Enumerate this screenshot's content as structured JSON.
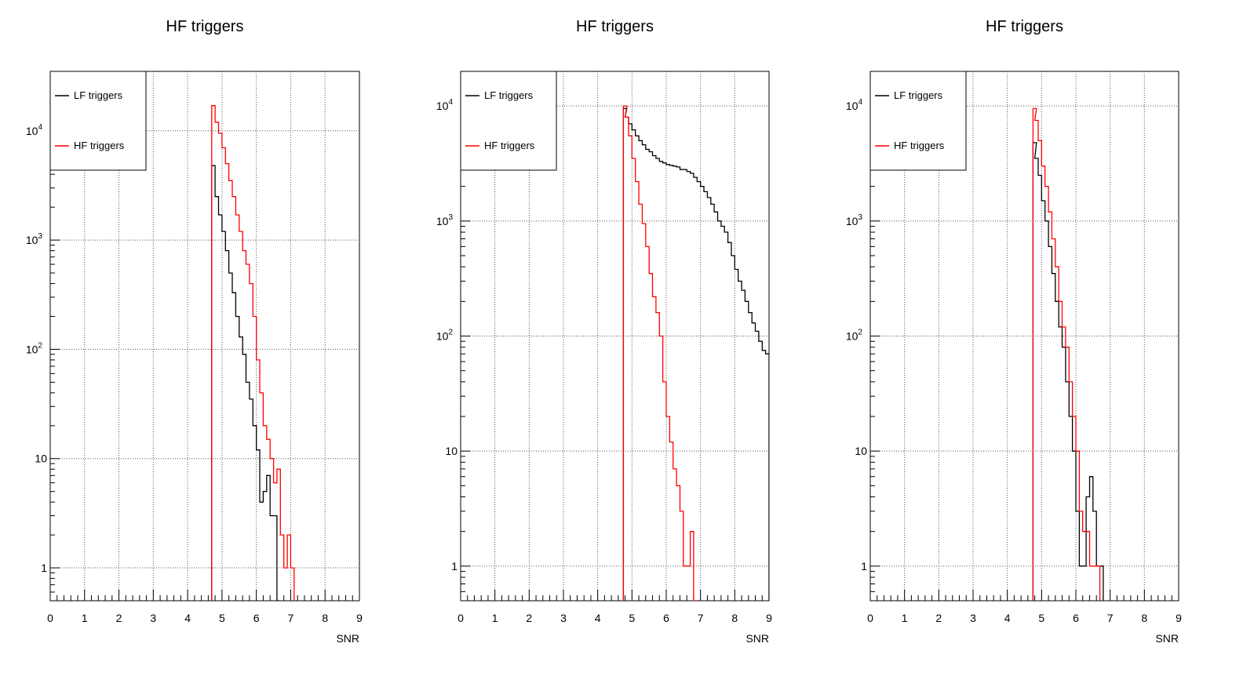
{
  "page": {
    "colors": {
      "lf": "#000000",
      "hf": "#ff0000",
      "grid": "#555555"
    }
  },
  "chart_data": [
    {
      "type": "line",
      "title": "HF triggers",
      "xlabel": "SNR",
      "ylabel": "",
      "xlim": [
        0,
        9
      ],
      "ylim": [
        0.5,
        35000
      ],
      "yscale": "log",
      "grid": true,
      "legend_position": "top-left",
      "x_ticks": [
        "0",
        "1",
        "2",
        "3",
        "4",
        "5",
        "6",
        "7",
        "8",
        "9"
      ],
      "y_ticks": [
        {
          "v": 1,
          "t": "1"
        },
        {
          "v": 10,
          "t": "10"
        },
        {
          "v": 100,
          "t": "10",
          "sup": "2"
        },
        {
          "v": 1000,
          "t": "10",
          "sup": "3"
        },
        {
          "v": 10000,
          "t": "10",
          "sup": "4"
        }
      ],
      "series": [
        {
          "name": "LF triggers",
          "color": "#000000",
          "x": [
            4.7,
            4.8,
            4.9,
            5.0,
            5.1,
            5.2,
            5.3,
            5.4,
            5.5,
            5.6,
            5.7,
            5.8,
            5.9,
            6.0,
            6.1,
            6.2,
            6.3,
            6.4,
            6.5,
            6.6
          ],
          "y": [
            4800,
            2500,
            1700,
            1200,
            800,
            500,
            330,
            200,
            130,
            90,
            50,
            35,
            20,
            12,
            4,
            5,
            7,
            3,
            3,
            0.5
          ]
        },
        {
          "name": "HF triggers",
          "color": "#ff0000",
          "x": [
            4.7,
            4.8,
            4.9,
            5.0,
            5.1,
            5.2,
            5.3,
            5.4,
            5.5,
            5.6,
            5.7,
            5.8,
            5.9,
            6.0,
            6.1,
            6.2,
            6.3,
            6.4,
            6.5,
            6.6,
            6.7,
            6.8,
            6.9,
            7.0
          ],
          "y": [
            17000,
            12000,
            9500,
            7000,
            5000,
            3500,
            2500,
            1700,
            1200,
            800,
            600,
            400,
            200,
            80,
            40,
            20,
            15,
            10,
            6,
            8,
            2,
            1,
            2,
            1
          ]
        }
      ]
    },
    {
      "type": "line",
      "title": "HF triggers",
      "xlabel": "SNR",
      "ylabel": "",
      "xlim": [
        0,
        9
      ],
      "ylim": [
        0.5,
        20000
      ],
      "yscale": "log",
      "grid": true,
      "legend_position": "top-left",
      "x_ticks": [
        "0",
        "1",
        "2",
        "3",
        "4",
        "5",
        "6",
        "7",
        "8",
        "9"
      ],
      "y_ticks": [
        {
          "v": 1,
          "t": "1"
        },
        {
          "v": 10,
          "t": "10"
        },
        {
          "v": 100,
          "t": "10",
          "sup": "2"
        },
        {
          "v": 1000,
          "t": "10",
          "sup": "3"
        },
        {
          "v": 10000,
          "t": "10",
          "sup": "4"
        }
      ],
      "series": [
        {
          "name": "LF triggers",
          "color": "#000000",
          "x": [
            4.75,
            4.8,
            4.9,
            5.0,
            5.1,
            5.2,
            5.3,
            5.4,
            5.5,
            5.6,
            5.7,
            5.8,
            5.9,
            6.0,
            6.1,
            6.2,
            6.3,
            6.4,
            6.5,
            6.6,
            6.7,
            6.8,
            6.9,
            7.0,
            7.1,
            7.2,
            7.3,
            7.4,
            7.5,
            7.6,
            7.7,
            7.8,
            7.9,
            8.0,
            8.1,
            8.2,
            8.3,
            8.4,
            8.5,
            8.6,
            8.7,
            8.8,
            8.9
          ],
          "y": [
            9500,
            8000,
            7000,
            6200,
            5500,
            5000,
            4600,
            4200,
            4000,
            3700,
            3500,
            3300,
            3200,
            3100,
            3050,
            3000,
            2950,
            2800,
            2800,
            2700,
            2600,
            2400,
            2200,
            2000,
            1800,
            1600,
            1400,
            1200,
            1000,
            900,
            800,
            650,
            500,
            380,
            300,
            250,
            200,
            160,
            130,
            110,
            90,
            75,
            70
          ]
        },
        {
          "name": "HF triggers",
          "color": "#ff0000",
          "x": [
            4.75,
            4.8,
            4.9,
            5.0,
            5.1,
            5.2,
            5.3,
            5.4,
            5.5,
            5.6,
            5.7,
            5.8,
            5.9,
            6.0,
            6.1,
            6.2,
            6.3,
            6.4,
            6.5,
            6.6,
            6.7,
            6.8
          ],
          "y": [
            10000,
            8000,
            5500,
            3500,
            2200,
            1400,
            950,
            600,
            350,
            220,
            160,
            100,
            40,
            20,
            12,
            7,
            5,
            3,
            1,
            1,
            2,
            0.5
          ]
        }
      ]
    },
    {
      "type": "line",
      "title": "HF triggers",
      "xlabel": "SNR",
      "ylabel": "",
      "xlim": [
        0,
        9
      ],
      "ylim": [
        0.5,
        20000
      ],
      "yscale": "log",
      "grid": true,
      "legend_position": "top-left",
      "x_ticks": [
        "0",
        "1",
        "2",
        "3",
        "4",
        "5",
        "6",
        "7",
        "8",
        "9"
      ],
      "y_ticks": [
        {
          "v": 1,
          "t": "1"
        },
        {
          "v": 10,
          "t": "10"
        },
        {
          "v": 100,
          "t": "10",
          "sup": "2"
        },
        {
          "v": 1000,
          "t": "10",
          "sup": "3"
        },
        {
          "v": 10000,
          "t": "10",
          "sup": "4"
        }
      ],
      "series": [
        {
          "name": "LF triggers",
          "color": "#000000",
          "x": [
            4.75,
            4.8,
            4.9,
            5.0,
            5.1,
            5.2,
            5.3,
            5.4,
            5.5,
            5.6,
            5.7,
            5.8,
            5.9,
            6.0,
            6.1,
            6.2,
            6.3,
            6.4,
            6.5,
            6.6,
            6.7
          ],
          "y": [
            4800,
            3500,
            2500,
            1500,
            1000,
            600,
            350,
            200,
            120,
            80,
            40,
            20,
            10,
            3,
            1,
            1,
            4,
            6,
            3,
            1,
            1
          ]
        },
        {
          "name": "HF triggers",
          "color": "#ff0000",
          "x": [
            4.75,
            4.8,
            4.9,
            5.0,
            5.1,
            5.2,
            5.3,
            5.4,
            5.5,
            5.6,
            5.7,
            5.8,
            5.9,
            6.0,
            6.1,
            6.2,
            6.3,
            6.4,
            6.5,
            6.6
          ],
          "y": [
            9500,
            7500,
            5000,
            3000,
            2000,
            1200,
            700,
            400,
            200,
            120,
            80,
            40,
            20,
            10,
            3,
            2,
            2,
            1,
            1,
            1
          ]
        }
      ]
    }
  ]
}
